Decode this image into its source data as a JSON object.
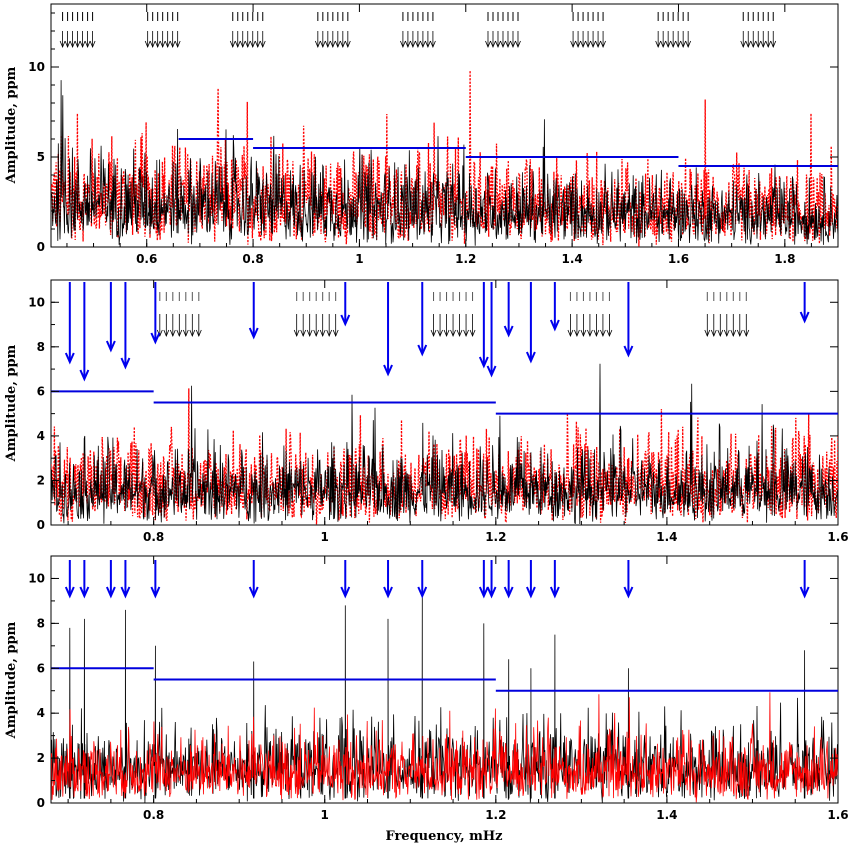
{
  "chart_data": [
    {
      "type": "line",
      "panel": "top",
      "ylabel": "Amplitude, ppm",
      "xlabel": "",
      "xlim": [
        0.42,
        1.9
      ],
      "ylim": [
        0,
        13.5
      ],
      "xticks": [
        "0.6",
        "0.8",
        "1",
        "1.2",
        "1.4",
        "1.6",
        "1.8"
      ],
      "yticks": [
        "0",
        "5",
        "10"
      ],
      "series": [
        {
          "color": "#ff0000",
          "style": "dotted"
        },
        {
          "color": "#000000",
          "style": "solid"
        }
      ],
      "noise_levels": [
        {
          "x": [
            0.66,
            0.8
          ],
          "y": 6.0
        },
        {
          "x": [
            0.8,
            1.2
          ],
          "y": 5.5
        },
        {
          "x": [
            1.2,
            1.6
          ],
          "y": 5.0
        },
        {
          "x": [
            1.6,
            1.9
          ],
          "y": 4.5
        }
      ],
      "mode_groups": [
        0.47,
        0.63,
        0.79,
        0.95,
        1.11,
        1.27,
        1.43,
        1.59,
        1.75
      ]
    },
    {
      "type": "line",
      "panel": "middle",
      "ylabel": "Amplitude, ppm",
      "xlabel": "",
      "xlim": [
        0.68,
        1.6
      ],
      "ylim": [
        0,
        11
      ],
      "xticks": [
        "0.8",
        "1",
        "1.2",
        "1.4",
        "1.6"
      ],
      "yticks": [
        "0",
        "2",
        "4",
        "6",
        "8",
        "10"
      ],
      "series": [
        {
          "color": "#ff0000",
          "style": "dotted"
        },
        {
          "color": "#000000",
          "style": "solid"
        }
      ],
      "noise_levels": [
        {
          "x": [
            0.68,
            0.8
          ],
          "y": 6.0
        },
        {
          "x": [
            0.8,
            1.2
          ],
          "y": 5.5
        },
        {
          "x": [
            1.2,
            1.6
          ],
          "y": 5.0
        }
      ],
      "mode_groups": [
        0.67,
        0.83,
        0.99,
        1.15,
        1.31,
        1.47
      ],
      "marked_frequencies": [
        0.702,
        0.719,
        0.75,
        0.767,
        0.802,
        0.917,
        1.024,
        1.074,
        1.114,
        1.186,
        1.195,
        1.215,
        1.241,
        1.269,
        1.355,
        1.561
      ]
    },
    {
      "type": "line",
      "panel": "bottom",
      "ylabel": "Amplitude, ppm",
      "xlabel": "Frequency, mHz",
      "xlim": [
        0.68,
        1.6
      ],
      "ylim": [
        0,
        11
      ],
      "xticks": [
        "0.8",
        "1",
        "1.2",
        "1.4",
        "1.6"
      ],
      "yticks": [
        "0",
        "2",
        "4",
        "6",
        "8",
        "10"
      ],
      "series": [
        {
          "color": "#000000",
          "style": "solid"
        },
        {
          "color": "#ff0000",
          "style": "solid"
        }
      ],
      "noise_levels": [
        {
          "x": [
            0.68,
            0.8
          ],
          "y": 6.0
        },
        {
          "x": [
            0.8,
            1.2
          ],
          "y": 5.5
        },
        {
          "x": [
            1.2,
            1.6
          ],
          "y": 5.0
        }
      ],
      "marked_frequencies": [
        0.702,
        0.719,
        0.75,
        0.767,
        0.802,
        0.917,
        1.024,
        1.074,
        1.114,
        1.186,
        1.195,
        1.215,
        1.241,
        1.269,
        1.355,
        1.561
      ],
      "peaks": [
        {
          "x": 0.702,
          "y": 7.8
        },
        {
          "x": 0.719,
          "y": 8.2
        },
        {
          "x": 0.767,
          "y": 8.6
        },
        {
          "x": 0.802,
          "y": 7.0
        },
        {
          "x": 0.917,
          "y": 6.3
        },
        {
          "x": 1.024,
          "y": 8.8
        },
        {
          "x": 1.074,
          "y": 8.2
        },
        {
          "x": 1.114,
          "y": 9.7
        },
        {
          "x": 1.186,
          "y": 8.0
        },
        {
          "x": 1.215,
          "y": 6.4
        },
        {
          "x": 1.241,
          "y": 6.0
        },
        {
          "x": 1.269,
          "y": 7.5
        },
        {
          "x": 1.355,
          "y": 6.0
        },
        {
          "x": 1.561,
          "y": 6.8
        }
      ]
    }
  ]
}
